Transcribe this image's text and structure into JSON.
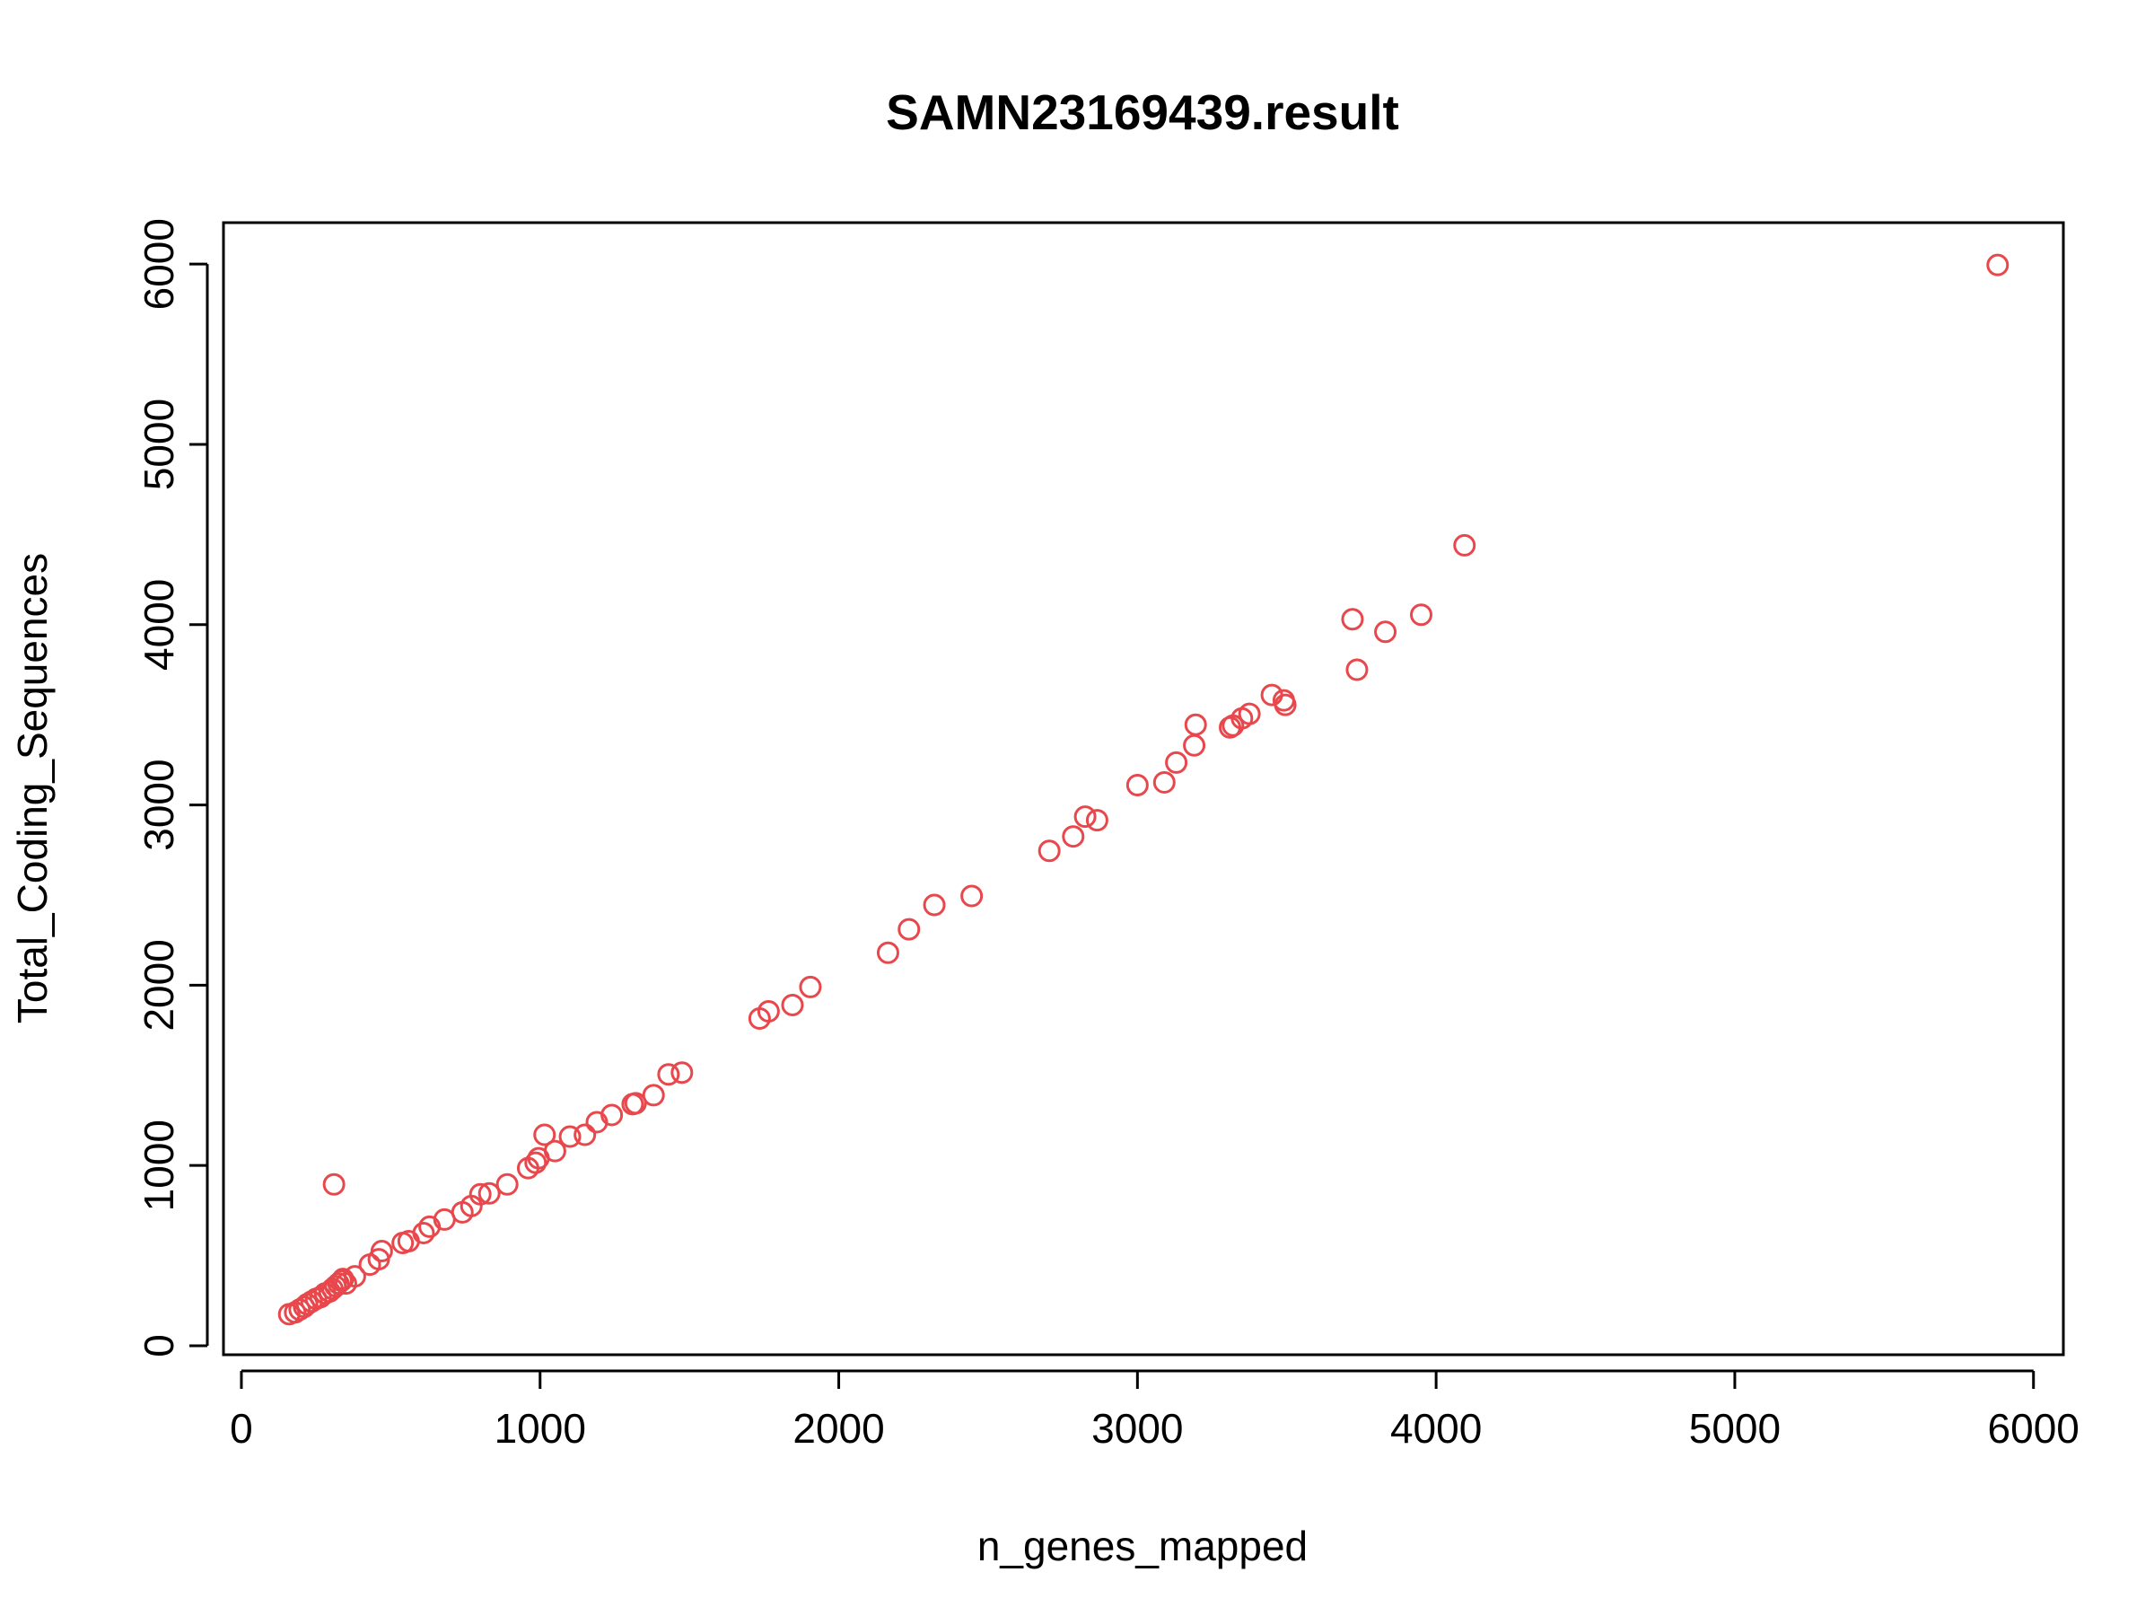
{
  "chart_data": {
    "type": "scatter",
    "title": "SAMN23169439.result",
    "xlabel": "n_genes_mapped",
    "ylabel": "Total_Coding_Sequences",
    "xlim": [
      -60,
      6100
    ],
    "ylim": [
      -50,
      6230
    ],
    "xticks": [
      0,
      1000,
      2000,
      3000,
      4000,
      5000,
      6000
    ],
    "yticks": [
      0,
      1000,
      2000,
      3000,
      4000,
      5000,
      6000
    ],
    "xtick_labels": [
      "0",
      "1000",
      "2000",
      "3000",
      "4000",
      "5000",
      "6000"
    ],
    "ytick_labels": [
      "0",
      "1000",
      "2000",
      "3000",
      "4000",
      "5000",
      "6000"
    ],
    "marker": "open-circle",
    "point_color": "#e8474c",
    "grid": false,
    "legend": "none",
    "points": [
      {
        "x": 160,
        "y": 175
      },
      {
        "x": 180,
        "y": 185
      },
      {
        "x": 195,
        "y": 200
      },
      {
        "x": 210,
        "y": 215
      },
      {
        "x": 220,
        "y": 230
      },
      {
        "x": 235,
        "y": 245
      },
      {
        "x": 250,
        "y": 260
      },
      {
        "x": 265,
        "y": 270
      },
      {
        "x": 280,
        "y": 290
      },
      {
        "x": 295,
        "y": 300
      },
      {
        "x": 305,
        "y": 315
      },
      {
        "x": 315,
        "y": 330
      },
      {
        "x": 325,
        "y": 345
      },
      {
        "x": 335,
        "y": 360
      },
      {
        "x": 340,
        "y": 370
      },
      {
        "x": 350,
        "y": 345
      },
      {
        "x": 380,
        "y": 385
      },
      {
        "x": 430,
        "y": 450
      },
      {
        "x": 460,
        "y": 480
      },
      {
        "x": 470,
        "y": 525
      },
      {
        "x": 540,
        "y": 570
      },
      {
        "x": 560,
        "y": 580
      },
      {
        "x": 610,
        "y": 625
      },
      {
        "x": 630,
        "y": 660
      },
      {
        "x": 680,
        "y": 700
      },
      {
        "x": 740,
        "y": 740
      },
      {
        "x": 770,
        "y": 775
      },
      {
        "x": 800,
        "y": 840
      },
      {
        "x": 830,
        "y": 845
      },
      {
        "x": 890,
        "y": 895
      },
      {
        "x": 960,
        "y": 985
      },
      {
        "x": 985,
        "y": 1015
      },
      {
        "x": 995,
        "y": 1040
      },
      {
        "x": 1015,
        "y": 1170
      },
      {
        "x": 1050,
        "y": 1080
      },
      {
        "x": 1100,
        "y": 1160
      },
      {
        "x": 1150,
        "y": 1170
      },
      {
        "x": 1190,
        "y": 1240
      },
      {
        "x": 1240,
        "y": 1280
      },
      {
        "x": 1310,
        "y": 1340
      },
      {
        "x": 1320,
        "y": 1345
      },
      {
        "x": 1380,
        "y": 1390
      },
      {
        "x": 1430,
        "y": 1505
      },
      {
        "x": 1475,
        "y": 1515
      },
      {
        "x": 310,
        "y": 895
      },
      {
        "x": 1735,
        "y": 1815
      },
      {
        "x": 1765,
        "y": 1855
      },
      {
        "x": 1845,
        "y": 1890
      },
      {
        "x": 1905,
        "y": 1990
      },
      {
        "x": 2165,
        "y": 2180
      },
      {
        "x": 2235,
        "y": 2310
      },
      {
        "x": 2320,
        "y": 2445
      },
      {
        "x": 2445,
        "y": 2495
      },
      {
        "x": 2705,
        "y": 2745
      },
      {
        "x": 2785,
        "y": 2825
      },
      {
        "x": 2825,
        "y": 2935
      },
      {
        "x": 2865,
        "y": 2915
      },
      {
        "x": 3000,
        "y": 3110
      },
      {
        "x": 3090,
        "y": 3125
      },
      {
        "x": 3130,
        "y": 3235
      },
      {
        "x": 3190,
        "y": 3330
      },
      {
        "x": 3195,
        "y": 3445
      },
      {
        "x": 3310,
        "y": 3430
      },
      {
        "x": 3320,
        "y": 3440
      },
      {
        "x": 3350,
        "y": 3480
      },
      {
        "x": 3375,
        "y": 3505
      },
      {
        "x": 3450,
        "y": 3610
      },
      {
        "x": 3490,
        "y": 3580
      },
      {
        "x": 3495,
        "y": 3555
      },
      {
        "x": 3720,
        "y": 4030
      },
      {
        "x": 3735,
        "y": 3750
      },
      {
        "x": 3830,
        "y": 3960
      },
      {
        "x": 3950,
        "y": 4055
      },
      {
        "x": 4095,
        "y": 4440
      },
      {
        "x": 5880,
        "y": 5995
      }
    ]
  }
}
